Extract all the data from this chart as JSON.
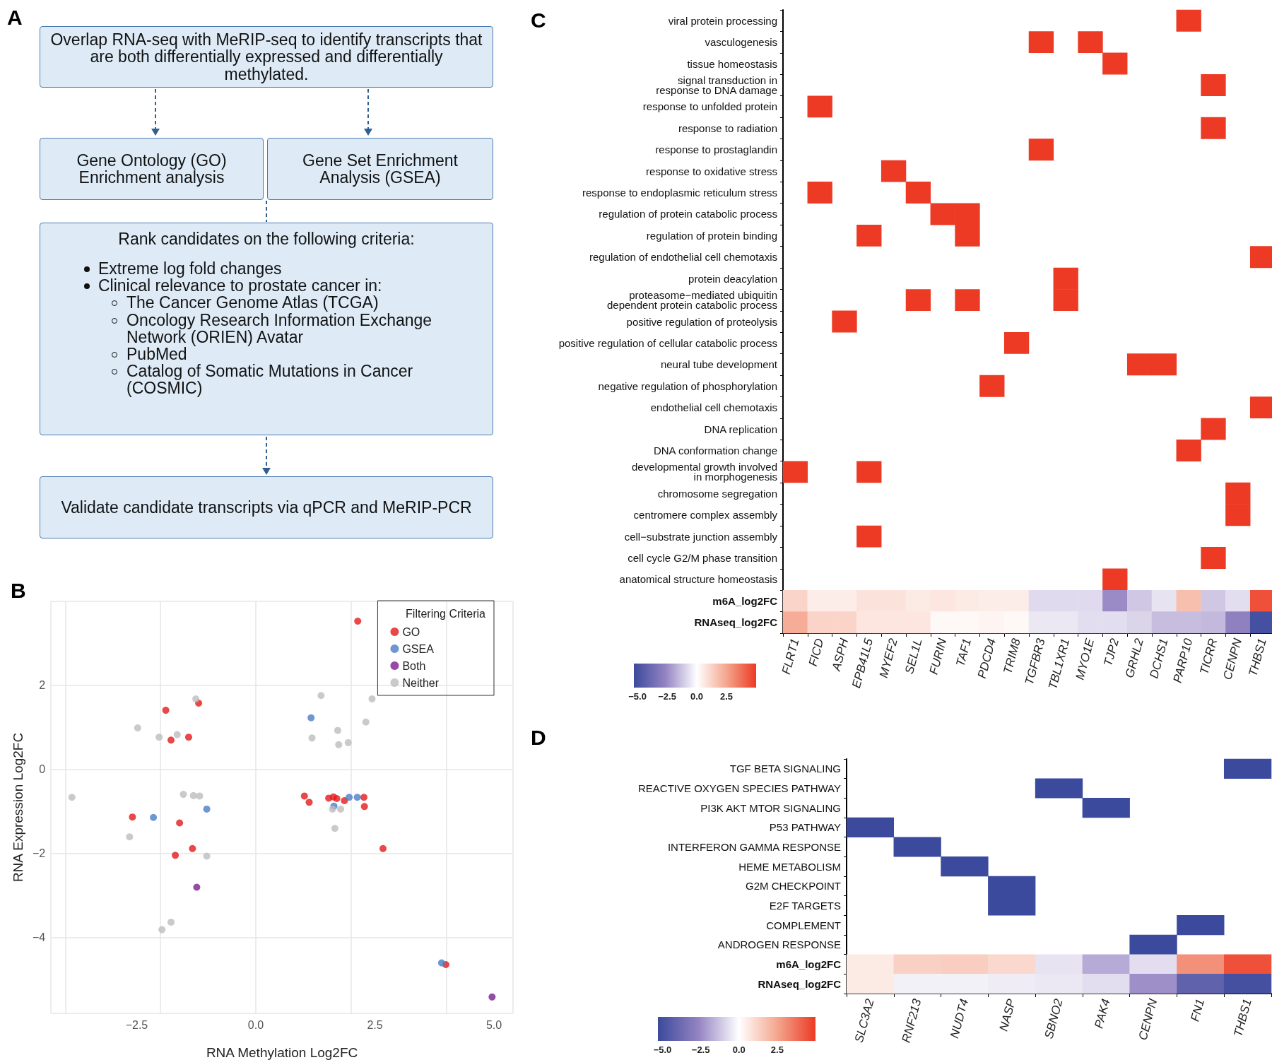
{
  "chart_data": [
    {
      "type": "other",
      "title": "A",
      "annotations": [
        "Overlap RNA-seq with MeRIP-seq to identify transcripts that are both differentially expressed and differentially methylated.",
        "Gene Ontology (GO) Enrichment analysis",
        "Gene Set Enrichment Analysis (GSEA)",
        "Rank candidates on the following criteria:",
        "Extreme log fold changes",
        "Clinical relevance to prostate cancer in:",
        "The Cancer Genome Atlas (TCGA)",
        "Oncology Research Information Exchange Network (ORIEN) Avatar",
        "PubMed",
        "Catalog of Somatic Mutations in Cancer (COSMIC)",
        "Validate candidate transcripts via qPCR and MeRIP-PCR"
      ]
    },
    {
      "type": "scatter",
      "title": "B",
      "xlabel": "RNA Methylation Log2FC",
      "ylabel": "RNA Expression Log2FC",
      "legend_title": "Filtering Criteria",
      "legend": "top right",
      "grid": true,
      "marker": "circle",
      "xlim": [
        -4.3,
        5.4
      ],
      "ylim": [
        -5.8,
        4.0
      ],
      "xticks": [
        {
          "value": -2.5,
          "label": "−2.5"
        },
        {
          "value": 0,
          "label": "0.0"
        },
        {
          "value": 2.5,
          "label": "2.5"
        },
        {
          "value": 5,
          "label": "5.0"
        }
      ],
      "yticks": [
        {
          "value": -4,
          "label": "−4"
        },
        {
          "value": -2,
          "label": "−2"
        },
        0,
        2
      ],
      "series": [
        {
          "name": "GO",
          "color": "#e41a1c",
          "x": [
            2.14,
            -1.89,
            -1.2,
            -1.78,
            -1.41,
            -2.59,
            -1.6,
            -1.33,
            -1.69,
            1.02,
            1.12,
            1.53,
            1.63,
            1.7,
            1.86,
            2.27,
            2.28,
            2.67,
            3.99
          ],
          "values": [
            3.53,
            1.41,
            1.58,
            0.7,
            0.77,
            -1.13,
            -1.27,
            -1.88,
            -2.04,
            -0.63,
            -0.78,
            -0.68,
            -0.65,
            -0.69,
            -0.74,
            -0.66,
            -0.88,
            -1.88,
            -4.64
          ]
        },
        {
          "name": "GSEA",
          "color": "#4a7cc5",
          "x": [
            1.16,
            -2.15,
            -1.03,
            1.64,
            1.96,
            2.13,
            3.9
          ],
          "values": [
            1.23,
            -1.14,
            -0.94,
            -0.87,
            -0.66,
            -0.66,
            -4.6
          ]
        },
        {
          "name": "Both",
          "color": "#7b1f8e",
          "x": [
            -1.24,
            4.96
          ],
          "values": [
            -2.8,
            -5.41
          ]
        },
        {
          "name": "Neither",
          "color": "#bdbdbd",
          "x": [
            -3.86,
            -2.48,
            -2.03,
            -1.65,
            -1.26,
            -2.65,
            -1.52,
            -1.31,
            -1.18,
            -1.03,
            -1.78,
            -1.97,
            1.37,
            2.44,
            2.31,
            1.72,
            1.18,
            1.94,
            1.74,
            1.61,
            1.78,
            1.66
          ],
          "values": [
            -0.66,
            0.99,
            0.77,
            0.83,
            1.68,
            -1.6,
            -0.59,
            -0.62,
            -0.63,
            -2.06,
            -3.63,
            -3.81,
            1.76,
            1.68,
            1.13,
            0.93,
            0.75,
            0.64,
            0.59,
            -0.94,
            -0.94,
            -1.4
          ]
        }
      ]
    },
    {
      "type": "heatmap",
      "title": "C",
      "categories": [
        "FLRT1",
        "FICD",
        "ASPH",
        "EPB41L5",
        "MYEF2",
        "SEL1L",
        "FURIN",
        "TAF1",
        "PDCD4",
        "TRIM8",
        "TGFBR3",
        "TBL1XR1",
        "MYO1E",
        "TJP2",
        "GRHL2",
        "DCHS1",
        "PARP10",
        "TICRR",
        "CENPN",
        "THBS1"
      ],
      "y_categories": [
        "viral protein processing",
        "vasculogenesis",
        "tissue homeostasis",
        "signal transduction in\nresponse to DNA damage",
        "response to unfolded protein",
        "response to radiation",
        "response to prostaglandin",
        "response to oxidative stress",
        "response to endoplasmic reticulum stress",
        "regulation of protein catabolic process",
        "regulation of protein binding",
        "regulation of endothelial cell chemotaxis",
        "protein deacylation",
        "proteasome−mediated ubiquitin\ndependent protein catabolic process",
        "positive regulation of proteolysis",
        "positive regulation of cellular catabolic process",
        "neural tube development",
        "negative regulation of phosphorylation",
        "endothelial cell chemotaxis",
        "DNA replication",
        "DNA conformation change",
        "developmental growth involved\nin morphogenesis",
        "chromosome segregation",
        "centromere complex assembly",
        "cell−substrate junction assembly",
        "cell cycle G2/M phase transition",
        "anatomical structure homeostasis",
        "m6A_log2FC",
        "RNAseq_log2FC"
      ],
      "cells": [
        [
          null,
          null,
          null,
          null,
          null,
          null,
          null,
          null,
          null,
          null,
          null,
          null,
          null,
          null,
          null,
          null,
          5,
          null,
          null,
          null
        ],
        [
          null,
          null,
          null,
          null,
          null,
          null,
          null,
          null,
          null,
          null,
          5,
          null,
          5,
          null,
          null,
          null,
          null,
          null,
          null,
          null
        ],
        [
          null,
          null,
          null,
          null,
          null,
          null,
          null,
          null,
          null,
          null,
          null,
          null,
          null,
          5,
          null,
          null,
          null,
          null,
          null,
          null
        ],
        [
          null,
          null,
          null,
          null,
          null,
          null,
          null,
          null,
          null,
          null,
          null,
          null,
          null,
          null,
          null,
          null,
          null,
          5,
          null,
          null
        ],
        [
          null,
          5,
          null,
          null,
          null,
          null,
          null,
          null,
          null,
          null,
          null,
          null,
          null,
          null,
          null,
          null,
          null,
          null,
          null,
          null
        ],
        [
          null,
          null,
          null,
          null,
          null,
          null,
          null,
          null,
          null,
          null,
          null,
          null,
          null,
          null,
          null,
          null,
          null,
          5,
          null,
          null
        ],
        [
          null,
          null,
          null,
          null,
          null,
          null,
          null,
          null,
          null,
          null,
          5,
          null,
          null,
          null,
          null,
          null,
          null,
          null,
          null,
          null
        ],
        [
          null,
          null,
          null,
          null,
          5,
          null,
          null,
          null,
          null,
          null,
          null,
          null,
          null,
          null,
          null,
          null,
          null,
          null,
          null,
          null
        ],
        [
          null,
          5,
          null,
          null,
          null,
          5,
          null,
          null,
          null,
          null,
          null,
          null,
          null,
          null,
          null,
          null,
          null,
          null,
          null,
          null
        ],
        [
          null,
          null,
          null,
          null,
          null,
          null,
          5,
          5,
          null,
          null,
          null,
          null,
          null,
          null,
          null,
          null,
          null,
          null,
          null,
          null
        ],
        [
          null,
          null,
          null,
          5,
          null,
          null,
          null,
          5,
          null,
          null,
          null,
          null,
          null,
          null,
          null,
          null,
          null,
          null,
          null,
          null
        ],
        [
          null,
          null,
          null,
          null,
          null,
          null,
          null,
          null,
          null,
          null,
          null,
          null,
          null,
          null,
          null,
          null,
          null,
          null,
          null,
          5
        ],
        [
          null,
          null,
          null,
          null,
          null,
          null,
          null,
          null,
          null,
          null,
          null,
          5,
          null,
          null,
          null,
          null,
          null,
          null,
          null,
          null
        ],
        [
          null,
          null,
          null,
          null,
          null,
          5,
          null,
          5,
          null,
          null,
          null,
          5,
          null,
          null,
          null,
          null,
          null,
          null,
          null,
          null
        ],
        [
          null,
          null,
          5,
          null,
          null,
          null,
          null,
          null,
          null,
          null,
          null,
          null,
          null,
          null,
          null,
          null,
          null,
          null,
          null,
          null
        ],
        [
          null,
          null,
          null,
          null,
          null,
          null,
          null,
          null,
          null,
          5,
          null,
          null,
          null,
          null,
          null,
          null,
          null,
          null,
          null,
          null
        ],
        [
          null,
          null,
          null,
          null,
          null,
          null,
          null,
          null,
          null,
          null,
          null,
          null,
          null,
          null,
          5,
          5,
          null,
          null,
          null,
          null
        ],
        [
          null,
          null,
          null,
          null,
          null,
          null,
          null,
          null,
          5,
          null,
          null,
          null,
          null,
          null,
          null,
          null,
          null,
          null,
          null,
          null
        ],
        [
          null,
          null,
          null,
          null,
          null,
          null,
          null,
          null,
          null,
          null,
          null,
          null,
          null,
          null,
          null,
          null,
          null,
          null,
          null,
          5
        ],
        [
          null,
          null,
          null,
          null,
          null,
          null,
          null,
          null,
          null,
          null,
          null,
          null,
          null,
          null,
          null,
          null,
          null,
          5,
          null,
          null
        ],
        [
          null,
          null,
          null,
          null,
          null,
          null,
          null,
          null,
          null,
          null,
          null,
          null,
          null,
          null,
          null,
          null,
          5,
          null,
          null,
          null
        ],
        [
          5,
          null,
          null,
          5,
          null,
          null,
          null,
          null,
          null,
          null,
          null,
          null,
          null,
          null,
          null,
          null,
          null,
          null,
          null,
          null
        ],
        [
          null,
          null,
          null,
          null,
          null,
          null,
          null,
          null,
          null,
          null,
          null,
          null,
          null,
          null,
          null,
          null,
          null,
          null,
          5,
          null
        ],
        [
          null,
          null,
          null,
          null,
          null,
          null,
          null,
          null,
          null,
          null,
          null,
          null,
          null,
          null,
          null,
          null,
          null,
          null,
          5,
          null
        ],
        [
          null,
          null,
          null,
          5,
          null,
          null,
          null,
          null,
          null,
          null,
          null,
          null,
          null,
          null,
          null,
          null,
          null,
          null,
          null,
          null
        ],
        [
          null,
          null,
          null,
          null,
          null,
          null,
          null,
          null,
          null,
          null,
          null,
          null,
          null,
          null,
          null,
          null,
          null,
          5,
          null,
          null
        ],
        [
          null,
          null,
          null,
          null,
          null,
          null,
          null,
          null,
          null,
          null,
          null,
          null,
          null,
          5,
          null,
          null,
          null,
          null,
          null,
          null
        ],
        [
          1.2,
          0.5,
          0.5,
          0.8,
          0.8,
          0.6,
          0.7,
          0.6,
          0.5,
          0.5,
          -0.8,
          -0.8,
          -0.8,
          -2.5,
          -1.2,
          -0.6,
          1.8,
          -1.2,
          -0.7,
          4.5
        ],
        [
          2.3,
          1.2,
          1.2,
          0.7,
          0.7,
          0.7,
          0.2,
          0.2,
          0.3,
          0.2,
          -0.5,
          -0.5,
          -0.7,
          -0.7,
          -0.9,
          -1.4,
          -1.4,
          -1.5,
          -2.8,
          -5
        ]
      ],
      "clim": [
        -5.3,
        5
      ],
      "cticks": [
        {
          "value": -5,
          "label": "−5.0"
        },
        {
          "value": -2.5,
          "label": "−2.5"
        },
        {
          "value": 0,
          "label": "0.0"
        },
        {
          "value": 2.5,
          "label": "2.5"
        }
      ]
    },
    {
      "type": "heatmap",
      "title": "D",
      "categories": [
        "SLC3A2",
        "RNF213",
        "NUDT4",
        "NASP",
        "SBNO2",
        "PAK4",
        "CENPN",
        "FN1",
        "THBS1"
      ],
      "y_categories": [
        "TGF BETA SIGNALING",
        "REACTIVE OXYGEN SPECIES PATHWAY",
        "PI3K AKT MTOR SIGNALING",
        "P53 PATHWAY",
        "INTERFERON GAMMA RESPONSE",
        "HEME METABOLISM",
        "G2M CHECKPOINT",
        "E2F TARGETS",
        "COMPLEMENT",
        "ANDROGEN RESPONSE",
        "m6A_log2FC",
        "RNAseq_log2FC"
      ],
      "cells": [
        [
          null,
          null,
          null,
          null,
          null,
          null,
          null,
          null,
          -5.3
        ],
        [
          null,
          null,
          null,
          null,
          -5.3,
          null,
          null,
          null,
          null
        ],
        [
          null,
          null,
          null,
          null,
          null,
          -5.3,
          null,
          null,
          null
        ],
        [
          -5.3,
          null,
          null,
          null,
          null,
          null,
          null,
          null,
          null
        ],
        [
          null,
          -5.3,
          null,
          null,
          null,
          null,
          null,
          null,
          null
        ],
        [
          null,
          null,
          -5.3,
          null,
          null,
          null,
          null,
          null,
          null
        ],
        [
          null,
          null,
          null,
          -5.3,
          null,
          null,
          null,
          null,
          null
        ],
        [
          null,
          null,
          null,
          -5.3,
          null,
          null,
          null,
          null,
          null
        ],
        [
          null,
          null,
          null,
          null,
          null,
          null,
          null,
          -5.3,
          null
        ],
        [
          null,
          null,
          null,
          null,
          null,
          null,
          -5.3,
          null,
          null
        ],
        [
          0.6,
          1.3,
          1.4,
          1.1,
          -0.6,
          -1.8,
          -0.7,
          3.0,
          4.5
        ],
        [
          0.6,
          -0.3,
          -0.3,
          -0.4,
          -0.5,
          -0.7,
          -2.4,
          -4.2,
          -5
        ]
      ],
      "clim": [
        -5.3,
        5
      ],
      "cticks": [
        {
          "value": -5,
          "label": "−5.0"
        },
        {
          "value": -2.5,
          "label": "−2.5"
        },
        {
          "value": 0,
          "label": "0.0"
        },
        {
          "value": 2.5,
          "label": "2.5"
        }
      ]
    }
  ]
}
